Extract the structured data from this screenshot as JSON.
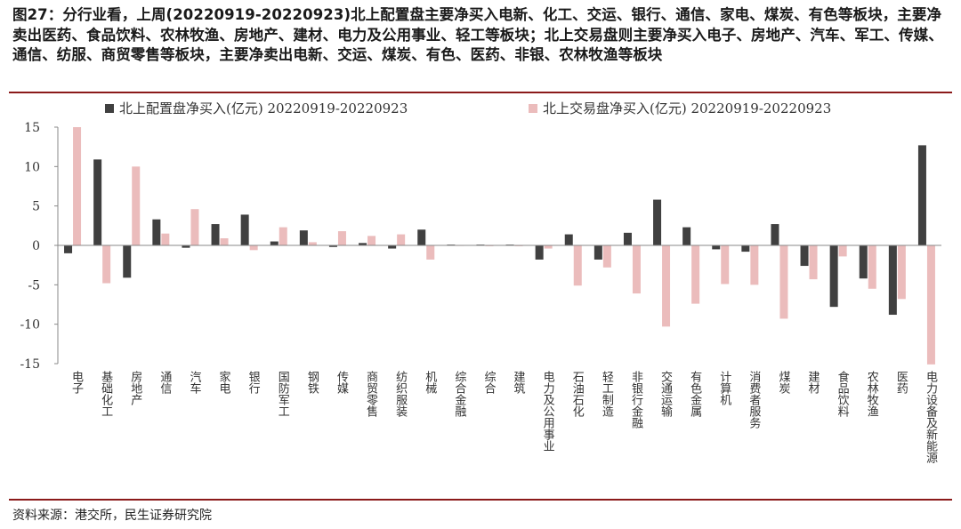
{
  "title": "图27：分行业看，上周(20220919-20220923)北上配置盘主要净买入电新、化工、交运、银行、通信、家电、煤炭、有色等板块，主要净卖出医药、食品饮料、农林牧渔、房地产、建材、电力及公用事业、轻工等板块；北上交易盘则主要净买入电子、房地产、汽车、军工、传媒、通信、纺服、商贸零售等板块，主要净卖出电新、交运、煤炭、有色、医药、非银、农林牧渔等板块",
  "source": "资料来源：港交所，民生证券研究院",
  "colors": {
    "series1": "#404040",
    "series2": "#ebbcbc",
    "rule": "#8b1a1a"
  },
  "chart_data": {
    "type": "bar",
    "ylim": [
      -15,
      15
    ],
    "yticks": [
      15,
      10,
      5,
      0,
      -5,
      -10,
      -15
    ],
    "grid": false,
    "legend": "top",
    "categories": [
      "电子",
      "基础化工",
      "房地产",
      "通信",
      "汽车",
      "家电",
      "银行",
      "国防军工",
      "钢铁",
      "传媒",
      "商贸零售",
      "纺织服装",
      "机械",
      "综合金融",
      "综合",
      "建筑",
      "电力及公用事业",
      "石油石化",
      "轻工制造",
      "非银行金融",
      "交通运输",
      "有色金属",
      "计算机",
      "消费者服务",
      "煤炭",
      "建材",
      "食品饮料",
      "农林牧渔",
      "医药",
      "电力设备及新能源"
    ],
    "series": [
      {
        "name": "北上配置盘净买入(亿元) 20220919-20220923",
        "values": [
          -1.0,
          10.9,
          -4.1,
          3.3,
          -0.3,
          2.7,
          3.9,
          0.5,
          1.9,
          -0.2,
          0.3,
          -0.4,
          2.0,
          0.1,
          0.1,
          0.1,
          -1.8,
          1.4,
          -1.8,
          1.6,
          5.8,
          2.3,
          -0.5,
          -0.8,
          2.7,
          -2.6,
          -7.8,
          -4.2,
          -8.8,
          12.7
        ]
      },
      {
        "name": "北上交易盘净买入(亿元) 20220919-20220923",
        "values": [
          15.0,
          -4.8,
          10.0,
          1.5,
          4.6,
          0.9,
          -0.6,
          2.3,
          0.4,
          1.8,
          1.2,
          1.4,
          -1.8,
          0.0,
          -0.1,
          -0.1,
          -0.4,
          -5.1,
          -2.8,
          -6.1,
          -10.3,
          -7.4,
          -4.9,
          -5.0,
          -9.3,
          -4.3,
          -1.4,
          -5.5,
          -6.8,
          -15.1
        ]
      }
    ]
  }
}
